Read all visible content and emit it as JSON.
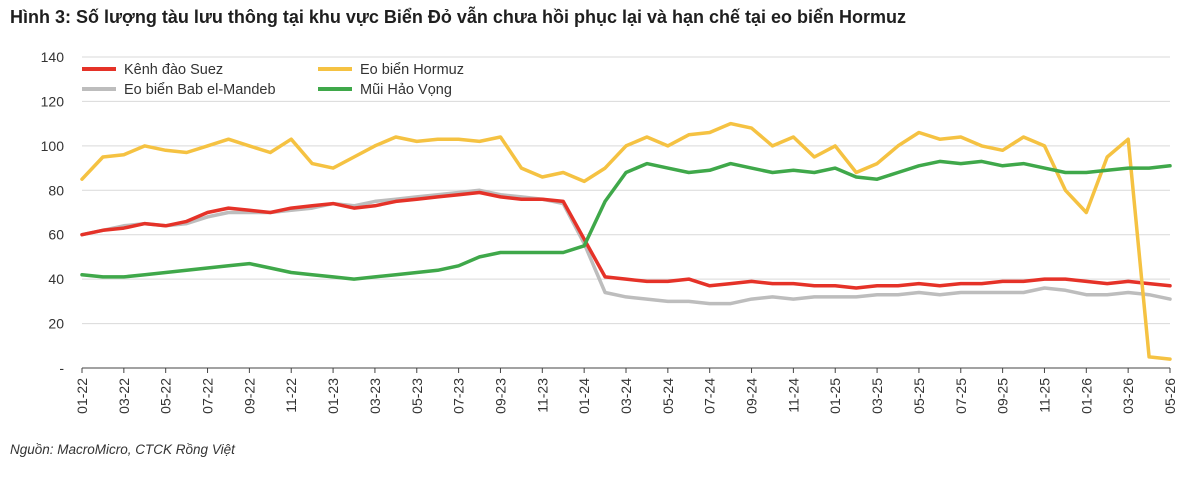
{
  "header": {
    "title": "Hình 3: Số lượng tàu lưu thông tại khu vực Biển Đỏ vẫn chưa hồi phục lại và hạn chế tại eo biển Hormuz"
  },
  "footer": {
    "source": "Nguồn: MacroMicro, CTCK Rồng Việt"
  },
  "colors": {
    "suez": "#e53228",
    "hormuz": "#f5c242",
    "bab": "#bdbdbd",
    "hope": "#3fa84a",
    "grid": "#d9d9d9"
  },
  "chart_data": {
    "type": "line",
    "title": "",
    "xlabel": "",
    "ylabel": "",
    "ylim": [
      0,
      140
    ],
    "yticks": [
      {
        "value": 0,
        "label": "-"
      },
      {
        "value": 20,
        "label": "20"
      },
      {
        "value": 40,
        "label": "40"
      },
      {
        "value": 60,
        "label": "60"
      },
      {
        "value": 80,
        "label": "80"
      },
      {
        "value": 100,
        "label": "100"
      },
      {
        "value": 120,
        "label": "120"
      },
      {
        "value": 140,
        "label": "140"
      }
    ],
    "grid": "horizontal",
    "legend_position": "top-left",
    "x_tick_labels": [
      "01-22",
      "03-22",
      "05-22",
      "07-22",
      "09-22",
      "11-22",
      "01-23",
      "03-23",
      "05-23",
      "07-23",
      "09-23",
      "11-23",
      "01-24",
      "03-24",
      "05-24",
      "07-24",
      "09-24",
      "11-24",
      "01-25",
      "03-25",
      "05-25",
      "07-25",
      "09-25",
      "11-25",
      "01-26",
      "03-26",
      "05-26"
    ],
    "x": [
      "01-22",
      "02-22",
      "03-22",
      "04-22",
      "05-22",
      "06-22",
      "07-22",
      "08-22",
      "09-22",
      "10-22",
      "11-22",
      "12-22",
      "01-23",
      "02-23",
      "03-23",
      "04-23",
      "05-23",
      "06-23",
      "07-23",
      "08-23",
      "09-23",
      "10-23",
      "11-23",
      "12-23",
      "01-24",
      "02-24",
      "03-24",
      "04-24",
      "05-24",
      "06-24",
      "07-24",
      "08-24",
      "09-24",
      "10-24",
      "11-24",
      "12-24",
      "01-25",
      "02-25",
      "03-25",
      "04-25",
      "05-25",
      "06-25",
      "07-25",
      "08-25",
      "09-25",
      "10-25",
      "11-25",
      "12-25",
      "01-26",
      "02-26",
      "03-26",
      "04-26",
      "05-26"
    ],
    "series": [
      {
        "name": "Kênh đào Suez",
        "color_key": "suez",
        "values": [
          60,
          62,
          63,
          65,
          64,
          66,
          70,
          72,
          71,
          70,
          72,
          73,
          74,
          72,
          73,
          75,
          76,
          77,
          78,
          79,
          77,
          76,
          76,
          75,
          58,
          41,
          40,
          39,
          39,
          40,
          37,
          38,
          39,
          38,
          38,
          37,
          37,
          36,
          37,
          37,
          38,
          37,
          38,
          38,
          39,
          39,
          40,
          40,
          39,
          38,
          39,
          38,
          37
        ]
      },
      {
        "name": "Eo biển Hormuz",
        "color_key": "hormuz",
        "values": [
          85,
          95,
          96,
          100,
          98,
          97,
          100,
          103,
          100,
          97,
          103,
          92,
          90,
          95,
          100,
          104,
          102,
          103,
          103,
          102,
          104,
          90,
          86,
          88,
          84,
          90,
          100,
          104,
          100,
          105,
          106,
          110,
          108,
          100,
          104,
          95,
          100,
          88,
          92,
          100,
          106,
          103,
          104,
          100,
          98,
          104,
          100,
          80,
          70,
          95,
          103,
          5,
          4
        ]
      },
      {
        "name": "Eo biển Bab el-Mandeb",
        "color_key": "bab",
        "values": [
          60,
          62,
          64,
          65,
          64,
          65,
          68,
          70,
          70,
          70,
          71,
          72,
          74,
          73,
          75,
          76,
          77,
          78,
          79,
          80,
          78,
          77,
          76,
          74,
          56,
          34,
          32,
          31,
          30,
          30,
          29,
          29,
          31,
          32,
          31,
          32,
          32,
          32,
          33,
          33,
          34,
          33,
          34,
          34,
          34,
          34,
          36,
          35,
          33,
          33,
          34,
          33,
          31
        ]
      },
      {
        "name": "Mũi Hảo Vọng",
        "color_key": "hope",
        "values": [
          42,
          41,
          41,
          42,
          43,
          44,
          45,
          46,
          47,
          45,
          43,
          42,
          41,
          40,
          41,
          42,
          43,
          44,
          46,
          50,
          52,
          52,
          52,
          52,
          55,
          75,
          88,
          92,
          90,
          88,
          89,
          92,
          90,
          88,
          89,
          88,
          90,
          86,
          85,
          88,
          91,
          93,
          92,
          93,
          91,
          92,
          90,
          88,
          88,
          89,
          90,
          90,
          91
        ]
      }
    ]
  }
}
